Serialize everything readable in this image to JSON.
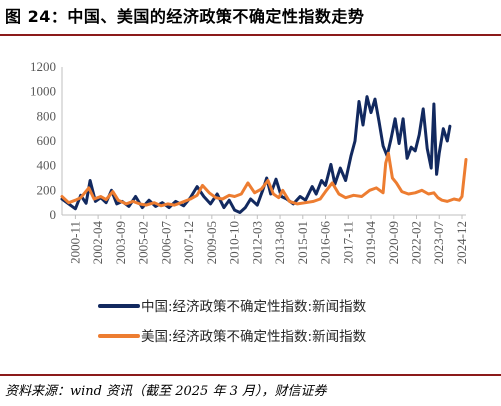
{
  "figure": {
    "title": "图 24：中国、美国的经济政策不确定性指数走势",
    "source": "资料来源：wind 资讯（截至 2025 年 3 月），财信证券"
  },
  "colors": {
    "china": "#12295f",
    "us": "#ed7d31",
    "rule": "#8b1a1a",
    "axis": "#bfbfbf",
    "text": "#595959"
  },
  "chart_data": {
    "type": "line",
    "title": "",
    "xlabel": "",
    "ylabel": "",
    "ylim": [
      0,
      1200
    ],
    "y_ticks": [
      0,
      200,
      400,
      600,
      800,
      1000,
      1200
    ],
    "x_range": [
      "2000-01",
      "2025-03"
    ],
    "x_ticks": [
      "2000-11",
      "2002-04",
      "2003-09",
      "2005-02",
      "2006-07",
      "2007-12",
      "2009-05",
      "2010-10",
      "2012-03",
      "2013-08",
      "2015-01",
      "2016-06",
      "2017-11",
      "2019-04",
      "2020-09",
      "2022-02",
      "2023-07",
      "2024-12"
    ],
    "grid": false,
    "legend_position": "bottom",
    "series": [
      {
        "name": "中国:经济政策不确定性指数:新闻指数",
        "color": "#12295f",
        "points": [
          [
            "2000-01",
            130
          ],
          [
            "2000-06",
            90
          ],
          [
            "2000-11",
            50
          ],
          [
            "2001-03",
            160
          ],
          [
            "2001-07",
            95
          ],
          [
            "2001-10",
            280
          ],
          [
            "2002-02",
            110
          ],
          [
            "2002-06",
            140
          ],
          [
            "2002-10",
            100
          ],
          [
            "2003-02",
            200
          ],
          [
            "2003-06",
            90
          ],
          [
            "2003-10",
            110
          ],
          [
            "2004-03",
            70
          ],
          [
            "2004-08",
            150
          ],
          [
            "2005-01",
            60
          ],
          [
            "2005-06",
            120
          ],
          [
            "2005-11",
            70
          ],
          [
            "2006-04",
            100
          ],
          [
            "2006-09",
            60
          ],
          [
            "2007-02",
            110
          ],
          [
            "2007-08",
            75
          ],
          [
            "2008-01",
            140
          ],
          [
            "2008-06",
            230
          ],
          [
            "2008-11",
            150
          ],
          [
            "2009-04",
            90
          ],
          [
            "2009-09",
            170
          ],
          [
            "2010-02",
            60
          ],
          [
            "2010-06",
            120
          ],
          [
            "2010-10",
            40
          ],
          [
            "2011-02",
            20
          ],
          [
            "2011-06",
            60
          ],
          [
            "2011-10",
            130
          ],
          [
            "2012-03",
            80
          ],
          [
            "2012-07",
            200
          ],
          [
            "2012-10",
            300
          ],
          [
            "2013-01",
            170
          ],
          [
            "2013-05",
            290
          ],
          [
            "2013-09",
            150
          ],
          [
            "2014-01",
            130
          ],
          [
            "2014-06",
            90
          ],
          [
            "2014-11",
            150
          ],
          [
            "2015-03",
            120
          ],
          [
            "2015-08",
            230
          ],
          [
            "2015-11",
            170
          ],
          [
            "2016-03",
            280
          ],
          [
            "2016-06",
            240
          ],
          [
            "2016-10",
            410
          ],
          [
            "2017-01",
            250
          ],
          [
            "2017-05",
            380
          ],
          [
            "2017-09",
            280
          ],
          [
            "2018-01",
            480
          ],
          [
            "2018-04",
            600
          ],
          [
            "2018-07",
            920
          ],
          [
            "2018-10",
            730
          ],
          [
            "2019-01",
            960
          ],
          [
            "2019-04",
            830
          ],
          [
            "2019-07",
            940
          ],
          [
            "2019-10",
            760
          ],
          [
            "2020-01",
            560
          ],
          [
            "2020-04",
            480
          ],
          [
            "2020-07",
            620
          ],
          [
            "2020-10",
            780
          ],
          [
            "2021-01",
            580
          ],
          [
            "2021-04",
            780
          ],
          [
            "2021-07",
            460
          ],
          [
            "2021-10",
            550
          ],
          [
            "2022-01",
            520
          ],
          [
            "2022-04",
            650
          ],
          [
            "2022-07",
            860
          ],
          [
            "2022-10",
            540
          ],
          [
            "2023-01",
            380
          ],
          [
            "2023-03",
            900
          ],
          [
            "2023-05",
            330
          ],
          [
            "2023-07",
            500
          ],
          [
            "2023-10",
            700
          ],
          [
            "2024-01",
            600
          ],
          [
            "2024-03",
            720
          ]
        ]
      },
      {
        "name": "美国:经济政策不确定性指数:新闻指数",
        "color": "#ed7d31",
        "points": [
          [
            "2000-01",
            150
          ],
          [
            "2000-06",
            100
          ],
          [
            "2000-11",
            120
          ],
          [
            "2001-03",
            140
          ],
          [
            "2001-09",
            220
          ],
          [
            "2002-01",
            130
          ],
          [
            "2002-06",
            150
          ],
          [
            "2002-10",
            125
          ],
          [
            "2003-03",
            190
          ],
          [
            "2003-07",
            120
          ],
          [
            "2004-01",
            90
          ],
          [
            "2004-06",
            110
          ],
          [
            "2004-11",
            90
          ],
          [
            "2005-04",
            80
          ],
          [
            "2005-10",
            100
          ],
          [
            "2006-03",
            75
          ],
          [
            "2006-08",
            90
          ],
          [
            "2007-01",
            80
          ],
          [
            "2007-06",
            100
          ],
          [
            "2008-01",
            130
          ],
          [
            "2008-06",
            160
          ],
          [
            "2008-10",
            240
          ],
          [
            "2009-03",
            180
          ],
          [
            "2009-08",
            140
          ],
          [
            "2010-01",
            130
          ],
          [
            "2010-06",
            160
          ],
          [
            "2010-10",
            150
          ],
          [
            "2011-03",
            170
          ],
          [
            "2011-08",
            260
          ],
          [
            "2012-01",
            180
          ],
          [
            "2012-06",
            210
          ],
          [
            "2012-11",
            280
          ],
          [
            "2013-03",
            170
          ],
          [
            "2013-07",
            140
          ],
          [
            "2013-10",
            200
          ],
          [
            "2014-03",
            110
          ],
          [
            "2014-09",
            90
          ],
          [
            "2015-03",
            100
          ],
          [
            "2015-09",
            110
          ],
          [
            "2016-02",
            130
          ],
          [
            "2016-06",
            190
          ],
          [
            "2016-11",
            260
          ],
          [
            "2017-04",
            170
          ],
          [
            "2017-09",
            140
          ],
          [
            "2018-03",
            160
          ],
          [
            "2018-09",
            150
          ],
          [
            "2019-03",
            200
          ],
          [
            "2019-08",
            220
          ],
          [
            "2020-01",
            180
          ],
          [
            "2020-03",
            420
          ],
          [
            "2020-05",
            500
          ],
          [
            "2020-08",
            300
          ],
          [
            "2020-11",
            260
          ],
          [
            "2021-03",
            190
          ],
          [
            "2021-08",
            170
          ],
          [
            "2022-01",
            180
          ],
          [
            "2022-06",
            200
          ],
          [
            "2022-11",
            170
          ],
          [
            "2023-03",
            180
          ],
          [
            "2023-06",
            140
          ],
          [
            "2023-09",
            120
          ],
          [
            "2024-01",
            110
          ],
          [
            "2024-06",
            130
          ],
          [
            "2024-10",
            120
          ],
          [
            "2024-12",
            150
          ],
          [
            "2025-01",
            250
          ],
          [
            "2025-03",
            450
          ]
        ]
      }
    ]
  }
}
